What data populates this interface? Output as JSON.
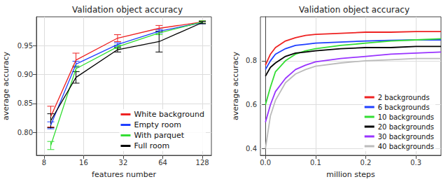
{
  "chart_data": [
    {
      "type": "line",
      "title": "Validation object accuracy",
      "x_label": "features number",
      "y_label": "average accuracy",
      "log": "x",
      "grid": true,
      "legend": "lower right",
      "xlim": [
        7,
        150
      ],
      "xticks": [
        8,
        16,
        32,
        64,
        128
      ],
      "ylim": [
        0.76,
        1.0
      ],
      "yticks": [
        {
          "value": 0.8,
          "label": "0.80"
        },
        {
          "value": 0.85,
          "label": "0.85"
        },
        {
          "value": 0.9,
          "label": "0.90"
        },
        {
          "value": 0.95,
          "label": "0.95"
        }
      ],
      "x": [
        9,
        14,
        29,
        60,
        128
      ],
      "series": [
        {
          "name": "White background",
          "color": "#ee2222",
          "values": [
            0.827,
            0.925,
            0.963,
            0.98,
            0.991
          ],
          "errors": [
            0.018,
            0.012,
            0.006,
            0.005,
            0.002
          ]
        },
        {
          "name": "Empty room",
          "color": "#1f3fff",
          "values": [
            0.812,
            0.918,
            0.952,
            0.975,
            0.99
          ],
          "errors": [
            0.006,
            0.005,
            0.003,
            0.003,
            0.002
          ]
        },
        {
          "name": "With parquet",
          "color": "#33dd33",
          "values": [
            0.777,
            0.91,
            0.948,
            0.972,
            0.991
          ],
          "errors": [
            0.007,
            0.005,
            0.003,
            0.003,
            0.002
          ]
        },
        {
          "name": "Full room",
          "color": "#000000",
          "values": [
            0.82,
            0.895,
            0.943,
            0.957,
            0.99
          ],
          "errors": [
            0.012,
            0.01,
            0.004,
            0.018,
            0.002
          ]
        }
      ]
    },
    {
      "type": "line",
      "title": "Validation object accuracy",
      "x_label": "million steps",
      "y_label": "average accuracy",
      "grid": true,
      "legend": "lower right",
      "xlim": [
        -0.01,
        0.35
      ],
      "xticks": [
        {
          "value": 0,
          "label": "0.0"
        },
        0.1,
        0.2,
        0.3
      ],
      "ylim": [
        0.37,
        1.0
      ],
      "yticks": [
        0.4,
        0.6,
        0.8
      ],
      "x": [
        0,
        0.01,
        0.02,
        0.04,
        0.06,
        0.08,
        0.1,
        0.15,
        0.2,
        0.25,
        0.3,
        0.35
      ],
      "series": [
        {
          "name": "2 backgrounds",
          "color": "#ee2222",
          "values": [
            0.78,
            0.83,
            0.86,
            0.89,
            0.905,
            0.915,
            0.92,
            0.925,
            0.93,
            0.93,
            0.933,
            0.933
          ]
        },
        {
          "name": "6 backgrounds",
          "color": "#1f3fff",
          "values": [
            0.76,
            0.8,
            0.83,
            0.855,
            0.87,
            0.875,
            0.88,
            0.885,
            0.89,
            0.893,
            0.895,
            0.895
          ]
        },
        {
          "name": "10 backgrounds",
          "color": "#33dd33",
          "values": [
            0.6,
            0.68,
            0.75,
            0.8,
            0.83,
            0.845,
            0.855,
            0.87,
            0.88,
            0.89,
            0.895,
            0.9
          ]
        },
        {
          "name": "20 backgrounds",
          "color": "#000000",
          "values": [
            0.73,
            0.77,
            0.79,
            0.82,
            0.835,
            0.84,
            0.845,
            0.855,
            0.86,
            0.86,
            0.865,
            0.865
          ]
        },
        {
          "name": "30 backgrounds",
          "color": "#9933ff",
          "values": [
            0.52,
            0.6,
            0.66,
            0.72,
            0.76,
            0.78,
            0.795,
            0.81,
            0.82,
            0.83,
            0.835,
            0.84
          ]
        },
        {
          "name": "40 backgrounds",
          "color": "#bbbbbb",
          "values": [
            0.4,
            0.55,
            0.62,
            0.7,
            0.74,
            0.76,
            0.775,
            0.79,
            0.8,
            0.805,
            0.81,
            0.81
          ]
        }
      ]
    }
  ]
}
